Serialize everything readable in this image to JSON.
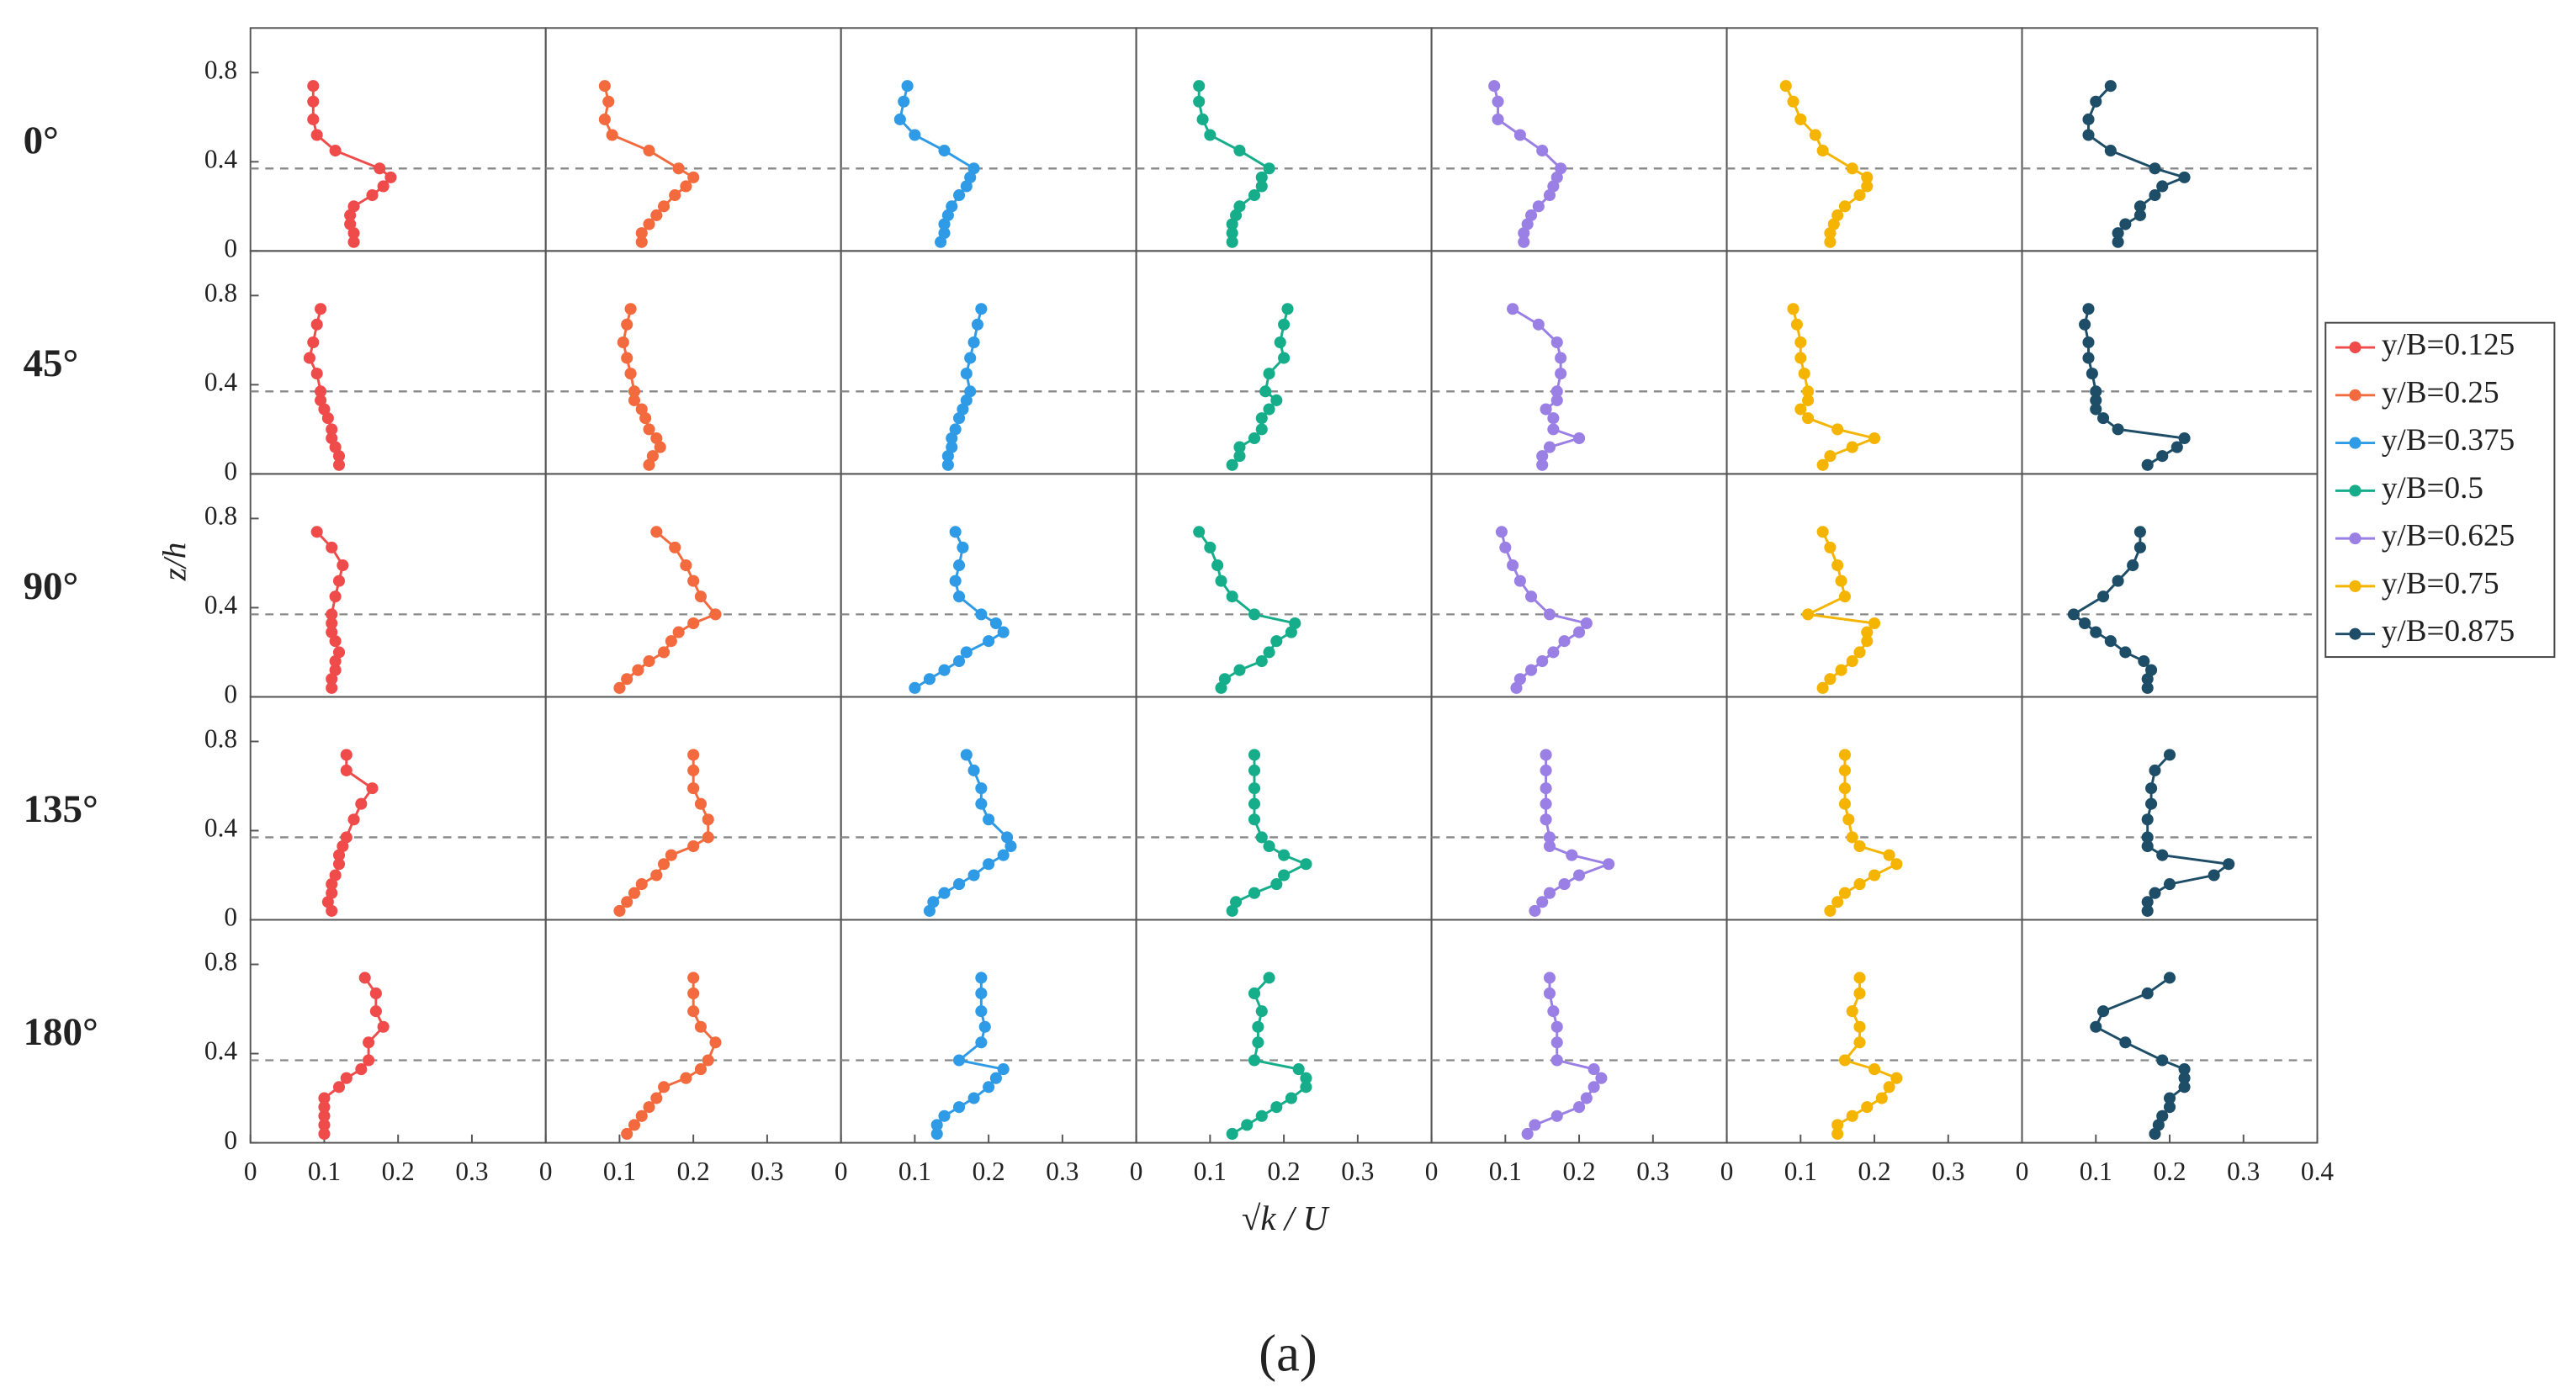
{
  "chart_data": {
    "type": "profile",
    "xlabel": "√k / U",
    "ylabel": "z/h",
    "row_labels": [
      "0°",
      "45°",
      "90°",
      "135°",
      "180°"
    ],
    "z": [
      0.04,
      0.08,
      0.12,
      0.16,
      0.2,
      0.25,
      0.29,
      0.33,
      0.37,
      0.45,
      0.52,
      0.59,
      0.67,
      0.74
    ],
    "xlim": [
      0,
      0.4
    ],
    "xticks": [
      0,
      0.1,
      0.2,
      0.3,
      0.4
    ],
    "ylim": [
      0,
      1
    ],
    "yticks": [
      0,
      0.4,
      0.8
    ],
    "hline": 0.37,
    "legend": "right",
    "series": [
      {
        "name": "y/B=0.125",
        "color": "#ef4b4b",
        "values": [
          [
            0.14,
            0.14,
            0.135,
            0.135,
            0.14,
            0.165,
            0.18,
            0.19,
            0.175,
            0.115,
            0.09,
            0.085,
            0.085,
            0.085
          ],
          [
            0.12,
            0.12,
            0.115,
            0.11,
            0.11,
            0.105,
            0.1,
            0.095,
            0.095,
            0.09,
            0.08,
            0.085,
            0.09,
            0.095
          ],
          [
            0.11,
            0.11,
            0.115,
            0.115,
            0.12,
            0.115,
            0.11,
            0.11,
            0.11,
            0.115,
            0.12,
            0.125,
            0.11,
            0.09
          ],
          [
            0.11,
            0.105,
            0.11,
            0.11,
            0.115,
            0.12,
            0.12,
            0.125,
            0.13,
            0.14,
            0.15,
            0.165,
            0.13,
            0.13
          ],
          [
            0.1,
            0.1,
            0.1,
            0.1,
            0.1,
            0.12,
            0.13,
            0.15,
            0.16,
            0.16,
            0.18,
            0.17,
            0.17,
            0.155
          ]
        ]
      },
      {
        "name": "y/B=0.25",
        "color": "#f26a3d",
        "values": [
          [
            0.13,
            0.13,
            0.14,
            0.15,
            0.16,
            0.175,
            0.19,
            0.2,
            0.18,
            0.14,
            0.09,
            0.08,
            0.085,
            0.08
          ],
          [
            0.14,
            0.145,
            0.155,
            0.15,
            0.14,
            0.135,
            0.13,
            0.12,
            0.12,
            0.115,
            0.11,
            0.105,
            0.11,
            0.115
          ],
          [
            0.1,
            0.11,
            0.125,
            0.14,
            0.16,
            0.17,
            0.18,
            0.2,
            0.23,
            0.21,
            0.2,
            0.19,
            0.175,
            0.15
          ],
          [
            0.1,
            0.11,
            0.12,
            0.13,
            0.15,
            0.16,
            0.17,
            0.2,
            0.22,
            0.22,
            0.21,
            0.2,
            0.2,
            0.2
          ],
          [
            0.11,
            0.12,
            0.13,
            0.14,
            0.15,
            0.16,
            0.19,
            0.21,
            0.22,
            0.23,
            0.21,
            0.2,
            0.2,
            0.2
          ]
        ]
      },
      {
        "name": "y/B=0.375",
        "color": "#2f9be6",
        "values": [
          [
            0.135,
            0.14,
            0.14,
            0.145,
            0.15,
            0.16,
            0.17,
            0.175,
            0.18,
            0.14,
            0.1,
            0.08,
            0.085,
            0.09
          ],
          [
            0.145,
            0.145,
            0.15,
            0.15,
            0.155,
            0.16,
            0.165,
            0.17,
            0.175,
            0.17,
            0.175,
            0.18,
            0.185,
            0.19
          ],
          [
            0.1,
            0.12,
            0.14,
            0.16,
            0.17,
            0.2,
            0.22,
            0.21,
            0.19,
            0.16,
            0.155,
            0.16,
            0.165,
            0.155
          ],
          [
            0.12,
            0.125,
            0.14,
            0.16,
            0.18,
            0.2,
            0.22,
            0.23,
            0.225,
            0.2,
            0.19,
            0.19,
            0.18,
            0.17
          ],
          [
            0.13,
            0.13,
            0.14,
            0.16,
            0.18,
            0.2,
            0.21,
            0.22,
            0.16,
            0.19,
            0.195,
            0.19,
            0.19,
            0.19
          ]
        ]
      },
      {
        "name": "y/B=0.5",
        "color": "#16ad8b",
        "values": [
          [
            0.13,
            0.13,
            0.13,
            0.135,
            0.14,
            0.16,
            0.17,
            0.17,
            0.18,
            0.14,
            0.1,
            0.09,
            0.085,
            0.085
          ],
          [
            0.13,
            0.14,
            0.14,
            0.16,
            0.17,
            0.17,
            0.18,
            0.19,
            0.175,
            0.18,
            0.2,
            0.195,
            0.2,
            0.205
          ],
          [
            0.115,
            0.12,
            0.14,
            0.17,
            0.18,
            0.19,
            0.21,
            0.215,
            0.16,
            0.13,
            0.115,
            0.11,
            0.1,
            0.085
          ],
          [
            0.13,
            0.135,
            0.16,
            0.19,
            0.2,
            0.23,
            0.2,
            0.18,
            0.17,
            0.16,
            0.16,
            0.16,
            0.16,
            0.16
          ],
          [
            0.13,
            0.15,
            0.17,
            0.19,
            0.21,
            0.23,
            0.23,
            0.22,
            0.16,
            0.165,
            0.165,
            0.17,
            0.16,
            0.18
          ]
        ]
      },
      {
        "name": "y/B=0.625",
        "color": "#9a80e4",
        "values": [
          [
            0.125,
            0.125,
            0.13,
            0.135,
            0.145,
            0.16,
            0.165,
            0.17,
            0.175,
            0.15,
            0.12,
            0.09,
            0.09,
            0.085
          ],
          [
            0.15,
            0.15,
            0.16,
            0.2,
            0.165,
            0.165,
            0.155,
            0.17,
            0.17,
            0.175,
            0.175,
            0.17,
            0.145,
            0.11
          ],
          [
            0.115,
            0.12,
            0.135,
            0.15,
            0.165,
            0.18,
            0.2,
            0.21,
            0.16,
            0.135,
            0.12,
            0.11,
            0.1,
            0.095
          ],
          [
            0.14,
            0.15,
            0.16,
            0.18,
            0.2,
            0.24,
            0.19,
            0.16,
            0.16,
            0.155,
            0.155,
            0.155,
            0.155,
            0.155
          ],
          [
            0.13,
            0.14,
            0.17,
            0.2,
            0.21,
            0.22,
            0.23,
            0.22,
            0.17,
            0.17,
            0.17,
            0.165,
            0.16,
            0.16
          ]
        ]
      },
      {
        "name": "y/B=0.75",
        "color": "#f4b400",
        "values": [
          [
            0.14,
            0.14,
            0.145,
            0.15,
            0.16,
            0.18,
            0.19,
            0.19,
            0.17,
            0.13,
            0.12,
            0.1,
            0.09,
            0.08
          ],
          [
            0.13,
            0.14,
            0.17,
            0.2,
            0.15,
            0.11,
            0.1,
            0.11,
            0.11,
            0.105,
            0.1,
            0.1,
            0.095,
            0.09
          ],
          [
            0.13,
            0.14,
            0.155,
            0.17,
            0.18,
            0.19,
            0.19,
            0.2,
            0.11,
            0.16,
            0.155,
            0.15,
            0.14,
            0.13
          ],
          [
            0.14,
            0.15,
            0.16,
            0.18,
            0.2,
            0.23,
            0.22,
            0.18,
            0.17,
            0.165,
            0.16,
            0.16,
            0.16,
            0.16
          ],
          [
            0.15,
            0.15,
            0.17,
            0.19,
            0.21,
            0.22,
            0.23,
            0.2,
            0.16,
            0.18,
            0.18,
            0.17,
            0.18,
            0.18
          ]
        ]
      },
      {
        "name": "y/B=0.875",
        "color": "#1e4d68",
        "values": [
          [
            0.13,
            0.13,
            0.14,
            0.16,
            0.16,
            0.18,
            0.19,
            0.22,
            0.18,
            0.12,
            0.09,
            0.09,
            0.1,
            0.12
          ],
          [
            0.17,
            0.19,
            0.21,
            0.22,
            0.13,
            0.11,
            0.1,
            0.1,
            0.1,
            0.095,
            0.09,
            0.09,
            0.085,
            0.09
          ],
          [
            0.17,
            0.17,
            0.175,
            0.165,
            0.14,
            0.12,
            0.1,
            0.085,
            0.07,
            0.11,
            0.13,
            0.15,
            0.16,
            0.16
          ],
          [
            0.17,
            0.17,
            0.18,
            0.2,
            0.26,
            0.28,
            0.19,
            0.17,
            0.17,
            0.17,
            0.175,
            0.175,
            0.18,
            0.2
          ],
          [
            0.18,
            0.185,
            0.19,
            0.2,
            0.2,
            0.22,
            0.22,
            0.22,
            0.19,
            0.14,
            0.1,
            0.11,
            0.17,
            0.2
          ]
        ]
      }
    ]
  },
  "caption": "(a)"
}
